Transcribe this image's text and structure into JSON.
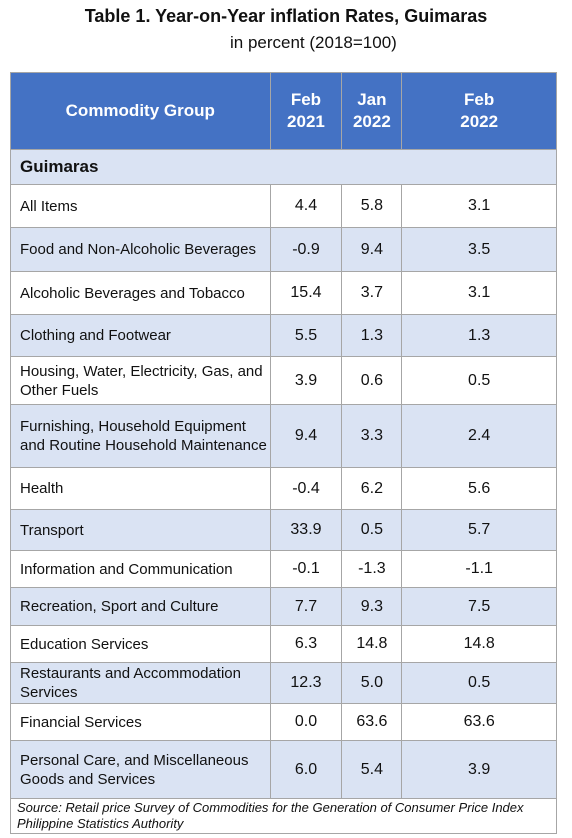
{
  "header": {
    "title": "Table 1. Year-on-Year inflation Rates, Guimaras",
    "subtitle": "in percent (2018=100)"
  },
  "table": {
    "columns": [
      "Commodity Group",
      "Feb 2021",
      "Jan 2022",
      "Feb 2022"
    ],
    "section": "Guimaras",
    "rows": [
      [
        "All Items",
        "4.4",
        "5.8",
        "3.1"
      ],
      [
        "Food and Non-Alcoholic Beverages",
        "-0.9",
        "9.4",
        "3.5"
      ],
      [
        "Alcoholic Beverages and Tobacco",
        "15.4",
        "3.7",
        "3.1"
      ],
      [
        "Clothing and Footwear",
        "5.5",
        "1.3",
        "1.3"
      ],
      [
        "Housing, Water, Electricity, Gas, and Other Fuels",
        "3.9",
        "0.6",
        "0.5"
      ],
      [
        "Furnishing, Household Equipment and Routine Household Maintenance",
        "9.4",
        "3.3",
        "2.4"
      ],
      [
        "Health",
        "-0.4",
        "6.2",
        "5.6"
      ],
      [
        "Transport",
        "33.9",
        "0.5",
        "5.7"
      ],
      [
        "Information and Communication",
        "-0.1",
        "-1.3",
        "-1.1"
      ],
      [
        "Recreation, Sport and Culture",
        "7.7",
        "9.3",
        "7.5"
      ],
      [
        "Education Services",
        "6.3",
        "14.8",
        "14.8"
      ],
      [
        "Restaurants and Accommodation Services",
        "12.3",
        "5.0",
        "0.5"
      ],
      [
        "Financial Services",
        "0.0",
        "63.6",
        "63.6"
      ],
      [
        "Personal Care, and Miscellaneous Goods and Services",
        "6.0",
        "5.4",
        "3.9"
      ]
    ],
    "source": "Source: Retail price Survey of Commodities for the Generation of Consumer Price Index Philippine Statistics Authority"
  }
}
